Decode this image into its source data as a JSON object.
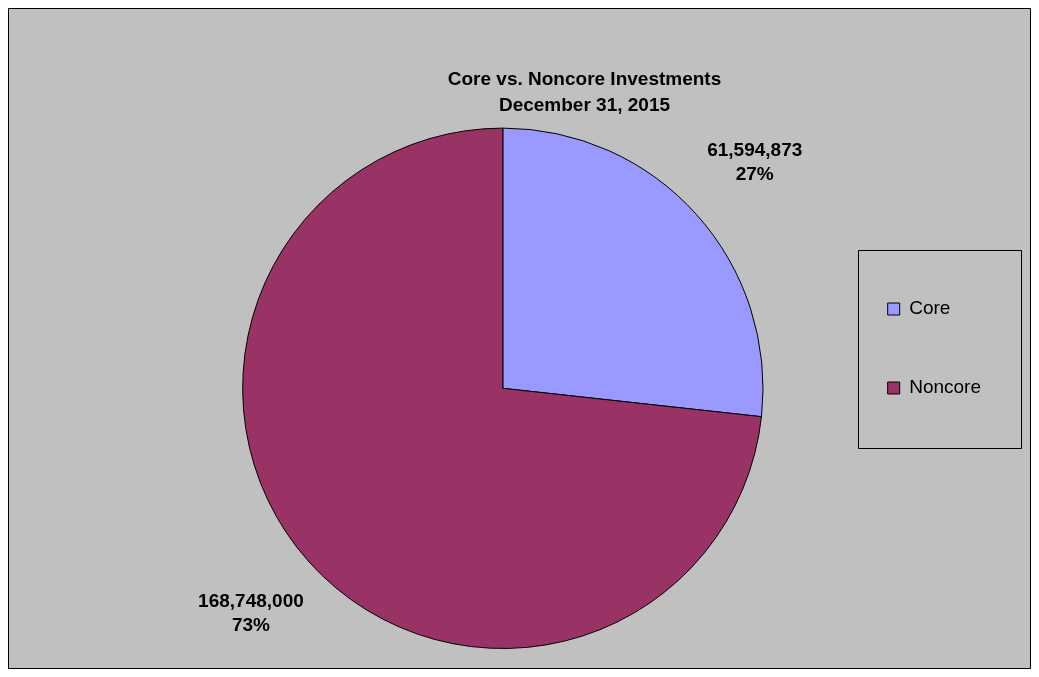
{
  "chart_data": {
    "type": "pie",
    "title": "Core vs. Noncore Investments",
    "subtitle": "December 31, 2015",
    "categories": [
      "Core",
      "Noncore"
    ],
    "values": [
      61594873,
      168748000
    ],
    "colors": [
      "#9999ff",
      "#993366"
    ],
    "value_labels": [
      "61,594,873\n27%",
      "168,748,000\n73%"
    ],
    "legend": "right"
  }
}
